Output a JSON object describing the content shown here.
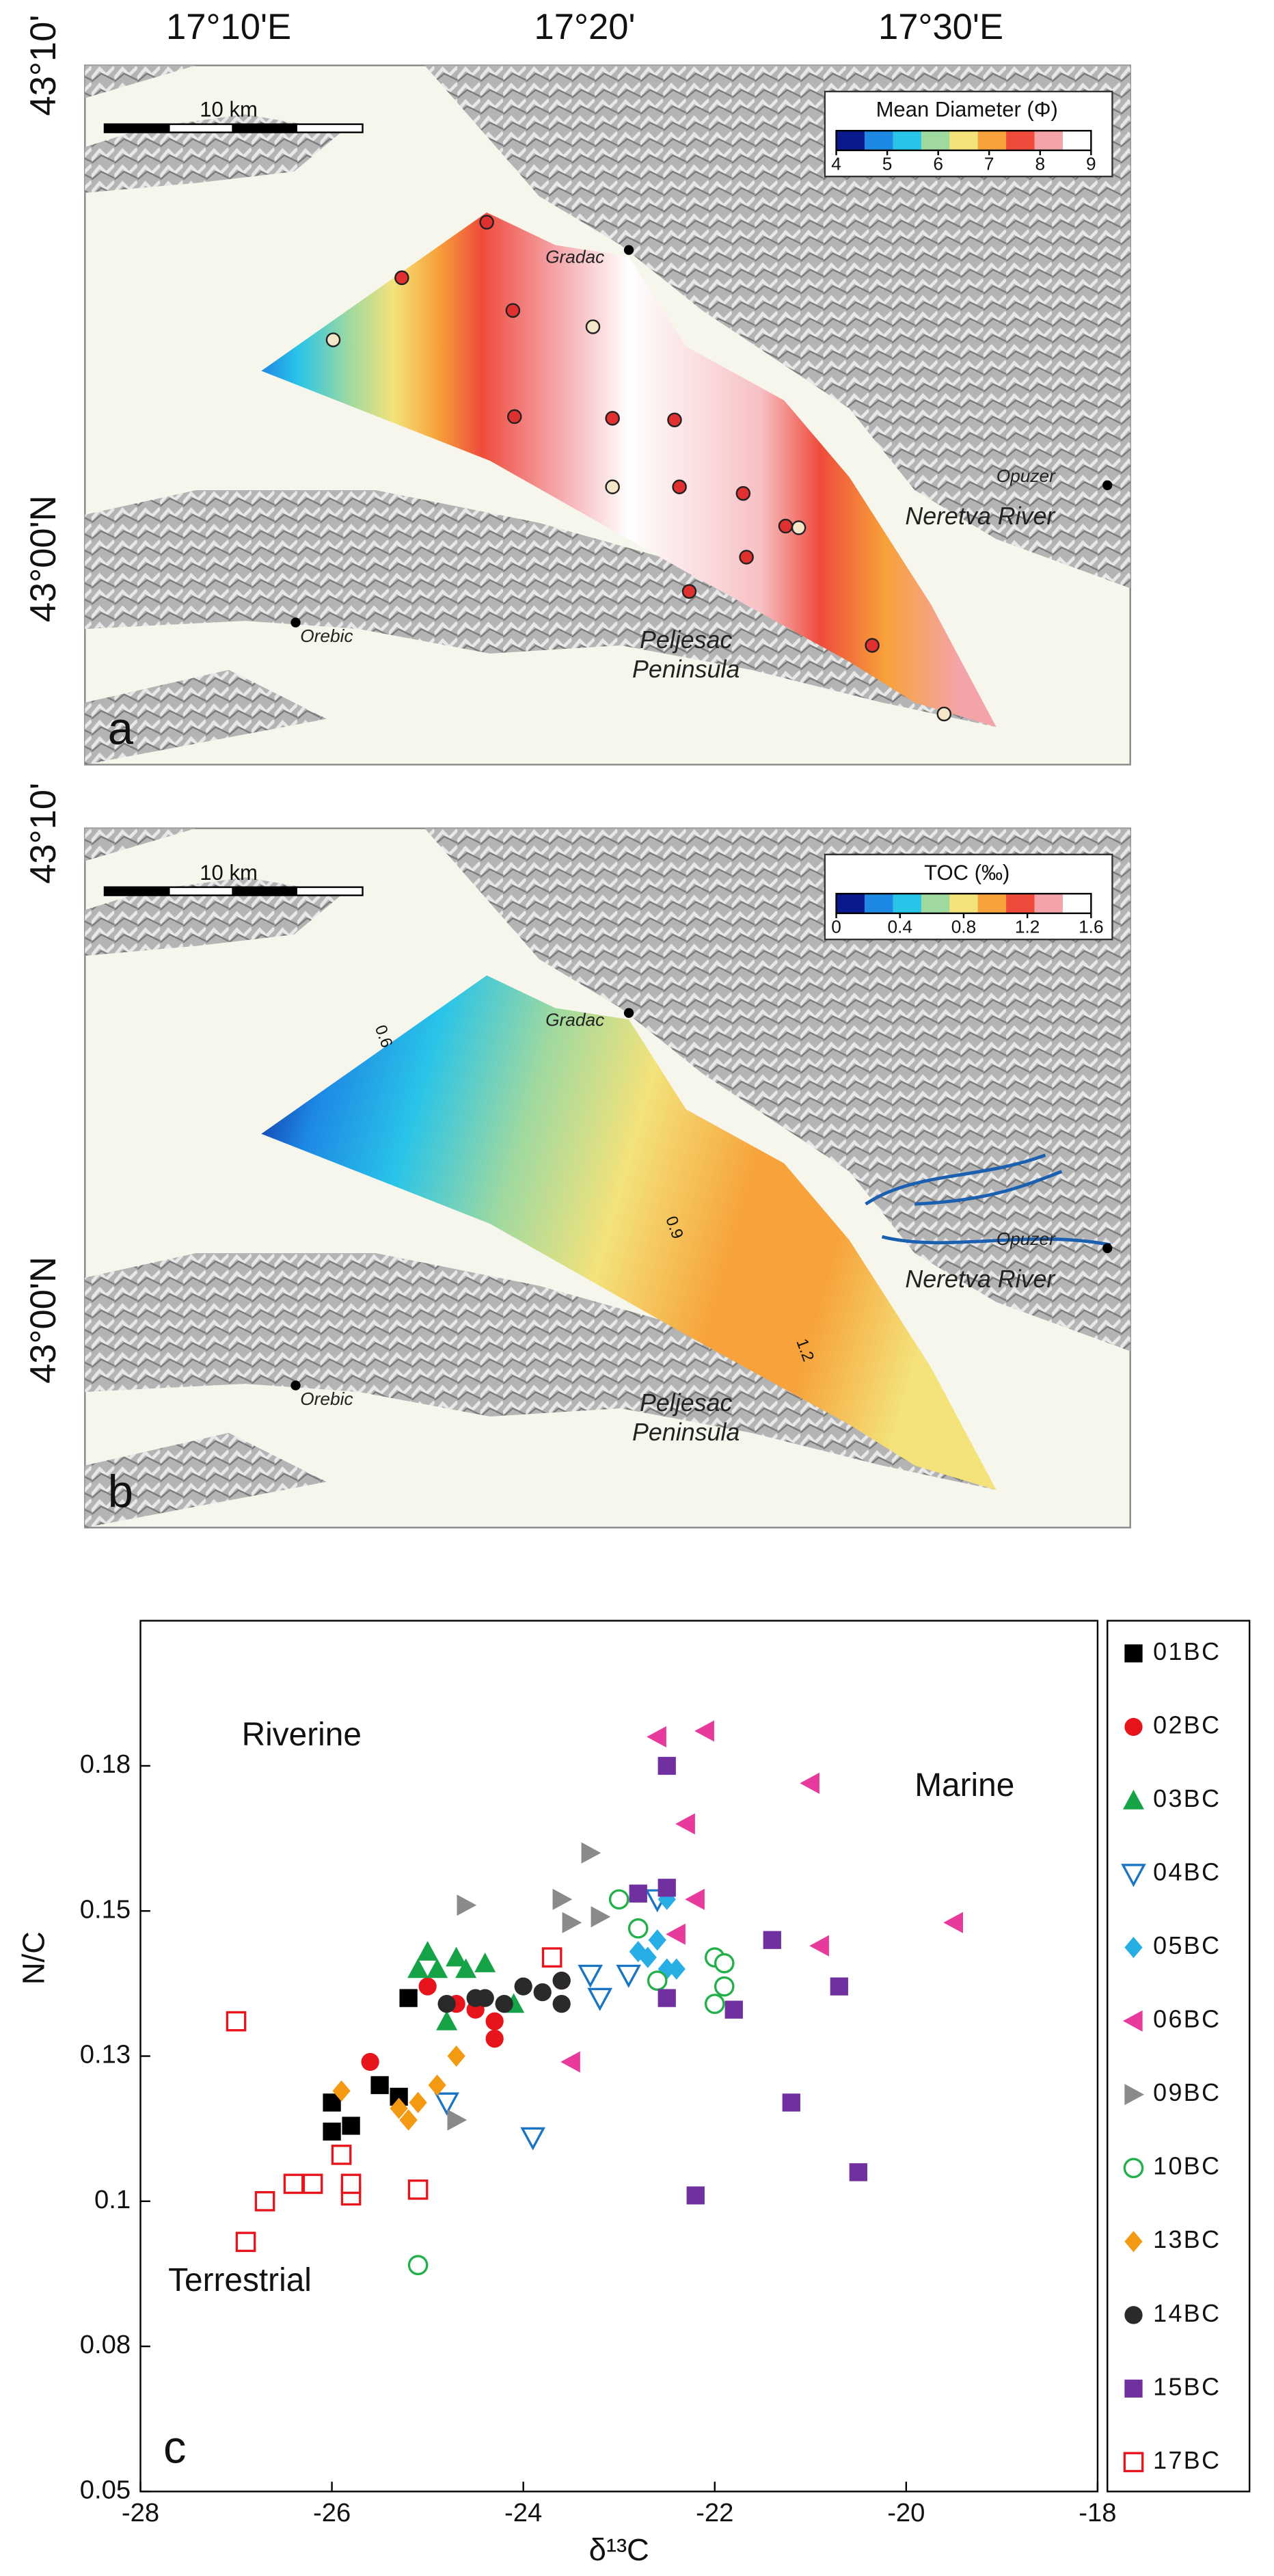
{
  "map_axes": {
    "lon_labels": [
      "17°10'E",
      "17°20'",
      "17°30'E"
    ],
    "lat_labels": [
      "43°10'",
      "43°00'N"
    ]
  },
  "map_panels": [
    {
      "letter": "a",
      "scale_label": "10 km",
      "colorbar": {
        "title": "Mean Diameter (Φ)",
        "ticks": [
          4,
          5,
          6,
          7,
          8,
          9
        ],
        "colors": [
          "#0a1a8c",
          "#1e88e5",
          "#29c4e8",
          "#9fd9a0",
          "#f4e27a",
          "#f7a23a",
          "#ef4b3c",
          "#f4a4a8",
          "#ffffff"
        ]
      },
      "places": [
        "Gradac",
        "Opuzer",
        "Neretva River",
        "Orebic",
        "Peljesac Peninsula"
      ]
    },
    {
      "letter": "b",
      "scale_label": "10 km",
      "colorbar": {
        "title": "TOC (‰)",
        "ticks": [
          0,
          0.4,
          0.8,
          1.2,
          1.6
        ],
        "colors": [
          "#0a1a8c",
          "#1e88e5",
          "#29c4e8",
          "#9fd9a0",
          "#f4e27a",
          "#f7a23a",
          "#ef4b3c",
          "#f4a4a8",
          "#ffffff"
        ]
      },
      "places": [
        "Gradac",
        "Opuzer",
        "Neretva River",
        "Orebic",
        "Peljesac Peninsula"
      ],
      "contour_labels": [
        "0.6",
        "0.9",
        "1.2"
      ]
    }
  ],
  "chart_data": {
    "type": "scatter",
    "panel_letter": "c",
    "xlabel": "δ¹³C",
    "ylabel": "N/C",
    "annotations": [
      "Riverine",
      "Marine",
      "Terrestrial"
    ],
    "xlim": [
      -28,
      -18
    ],
    "xticks": [
      -28,
      -26,
      -24,
      -22,
      -20,
      -18
    ],
    "ylim": [
      0.05,
      0.2
    ],
    "yticks": [
      0.05,
      {
        "value": 0.075,
        "label": "0.08"
      },
      0.1,
      {
        "value": 0.125,
        "label": "0.13"
      },
      0.15,
      {
        "value": 0.175,
        "label": "0.18"
      }
    ],
    "legend": "right",
    "series": [
      {
        "name": "01BC",
        "color": "#000000",
        "marker": "square",
        "x": [
          -26.0,
          -26.0,
          -25.8,
          -25.5,
          -25.3,
          -25.2
        ],
        "values": [
          0.117,
          0.112,
          0.113,
          0.12,
          0.118,
          0.135
        ]
      },
      {
        "name": "02BC",
        "color": "#e8141c",
        "marker": "circle",
        "x": [
          -25.6,
          -25.0,
          -24.7,
          -24.5,
          -24.3,
          -24.3,
          -23.6
        ],
        "values": [
          0.124,
          0.137,
          0.134,
          0.133,
          0.128,
          0.131,
          0.138
        ]
      },
      {
        "name": "03BC",
        "color": "#16a347",
        "marker": "triangle-up",
        "x": [
          -25.1,
          -24.9,
          -24.6,
          -24.4,
          -24.8,
          -24.1,
          -24.7,
          -25.0
        ],
        "values": [
          0.14,
          0.14,
          0.14,
          0.141,
          0.131,
          0.134,
          0.142,
          0.143
        ]
      },
      {
        "name": "04BC",
        "color": "#1a74c4",
        "marker": "triangle-down-open",
        "x": [
          -24.8,
          -23.9,
          -23.3,
          -23.2,
          -22.9,
          -22.6
        ],
        "values": [
          0.117,
          0.111,
          0.139,
          0.135,
          0.139,
          0.152
        ]
      },
      {
        "name": "05BC",
        "color": "#27aee5",
        "marker": "diamond",
        "x": [
          -22.7,
          -22.5,
          -22.4,
          -22.8,
          -22.6,
          -22.5
        ],
        "values": [
          0.142,
          0.14,
          0.14,
          0.143,
          0.145,
          0.152
        ]
      },
      {
        "name": "06BC",
        "color": "#e83a9c",
        "marker": "triangle-left",
        "x": [
          -22.6,
          -22.1,
          -22.3,
          -22.2,
          -22.4,
          -23.5,
          -21.0,
          -20.9,
          -19.5
        ],
        "values": [
          0.18,
          0.181,
          0.165,
          0.152,
          0.146,
          0.124,
          0.172,
          0.144,
          0.148
        ]
      },
      {
        "name": "09BC",
        "color": "#8a8a8a",
        "marker": "triangle-right",
        "x": [
          -23.3,
          -23.5,
          -23.6,
          -24.6,
          -24.7,
          -23.2
        ],
        "values": [
          0.16,
          0.148,
          0.152,
          0.151,
          0.114,
          0.149
        ]
      },
      {
        "name": "10BC",
        "color": "#22b04a",
        "marker": "circle-open",
        "x": [
          -23.0,
          -22.8,
          -22.6,
          -22.0,
          -21.9,
          -21.9,
          -22.0,
          -25.1
        ],
        "values": [
          0.152,
          0.147,
          0.138,
          0.142,
          0.137,
          0.141,
          0.134,
          0.089
        ]
      },
      {
        "name": "13BC",
        "color": "#f39a12",
        "marker": "diamond",
        "x": [
          -25.9,
          -25.3,
          -25.2,
          -25.1,
          -24.9,
          -24.7
        ],
        "values": [
          0.119,
          0.116,
          0.114,
          0.117,
          0.12,
          0.125
        ]
      },
      {
        "name": "14BC",
        "color": "#2a2a2a",
        "marker": "circle",
        "x": [
          -24.8,
          -24.5,
          -24.2,
          -24.0,
          -23.6,
          -23.6,
          -23.8,
          -24.4
        ],
        "values": [
          0.134,
          0.135,
          0.134,
          0.137,
          0.134,
          0.138,
          0.136,
          0.135
        ]
      },
      {
        "name": "15BC",
        "color": "#7030a0",
        "marker": "square",
        "x": [
          -22.8,
          -22.5,
          -22.5,
          -21.8,
          -21.4,
          -20.7,
          -21.2,
          -20.5,
          -22.2,
          -22.5
        ],
        "values": [
          0.153,
          0.175,
          0.135,
          0.133,
          0.145,
          0.137,
          0.117,
          0.105,
          0.101,
          0.154
        ]
      },
      {
        "name": "17BC",
        "color": "#e8141c",
        "marker": "square-open",
        "x": [
          -27.0,
          -26.9,
          -26.7,
          -26.4,
          -26.2,
          -25.8,
          -25.8,
          -25.1,
          -25.9,
          -23.7
        ],
        "values": [
          0.131,
          0.093,
          0.1,
          0.103,
          0.103,
          0.101,
          0.103,
          0.102,
          0.108,
          0.142
        ]
      }
    ]
  }
}
